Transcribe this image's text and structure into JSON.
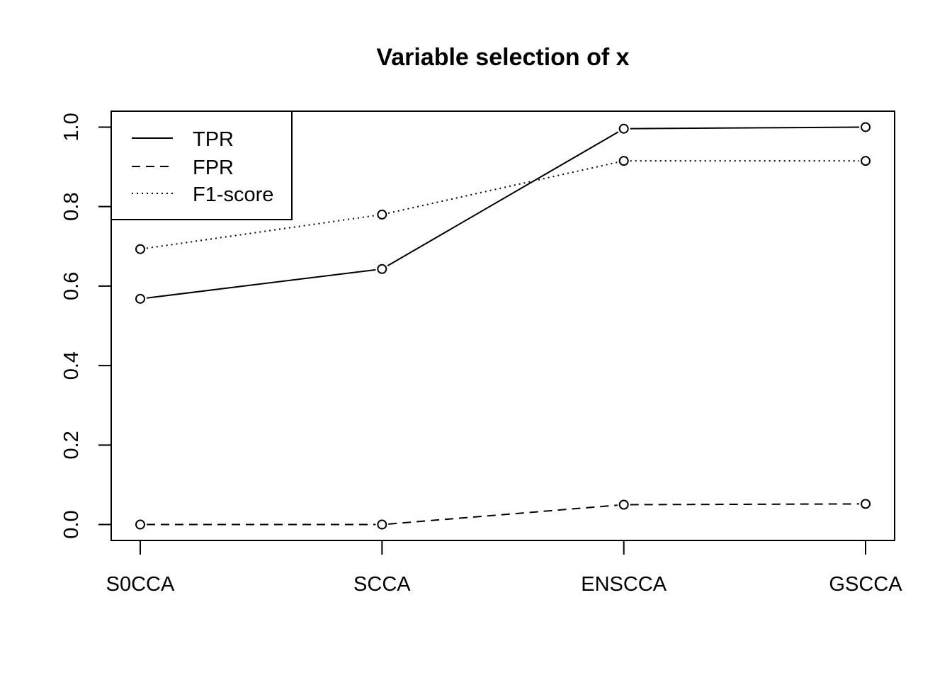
{
  "chart_data": {
    "type": "line",
    "title": "Variable selection of x",
    "xlabel": "",
    "ylabel": "",
    "categories": [
      "S0CCA",
      "SCCA",
      "ENSCCA",
      "GSCCA"
    ],
    "ylim": [
      -0.04,
      1.04
    ],
    "yticks": [
      0.0,
      0.2,
      0.4,
      0.6,
      0.8,
      1.0
    ],
    "ytick_labels": [
      "0.0",
      "0.2",
      "0.4",
      "0.6",
      "0.8",
      "1.0"
    ],
    "grid": false,
    "legend": "top-left",
    "series": [
      {
        "name": "TPR",
        "dash": "solid",
        "values": [
          0.568,
          0.643,
          0.996,
          1.0
        ]
      },
      {
        "name": "FPR",
        "dash": "dashed",
        "values": [
          0.0,
          0.0,
          0.05,
          0.052
        ]
      },
      {
        "name": "F1-score",
        "dash": "dotted",
        "values": [
          0.693,
          0.78,
          0.915,
          0.915
        ]
      }
    ]
  }
}
